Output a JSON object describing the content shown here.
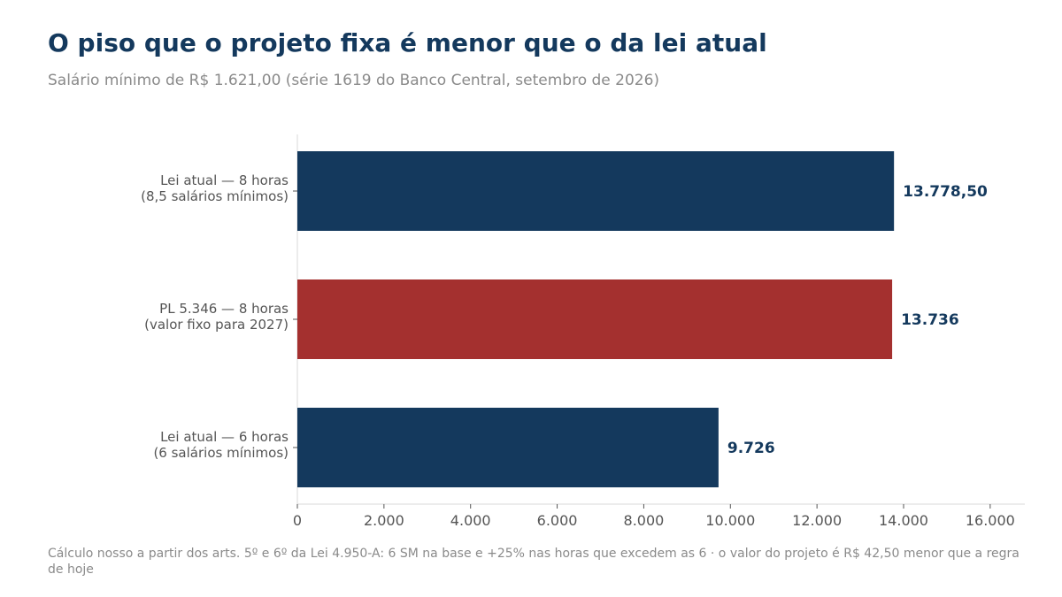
{
  "header": {
    "title": "O piso que o projeto fixa é menor que o da lei atual",
    "subtitle": "Salário mínimo de R$ 1.621,00 (série 1619 do Banco Central, setembro de 2026)"
  },
  "footnote": "Cálculo nosso a partir dos arts. 5º e 6º da Lei 4.950-A: 6 SM na base e +25% nas horas que excedem as 6 · o valor do projeto é R$ 42,50 menor que a regra de hoje",
  "chart_data": {
    "type": "bar",
    "orientation": "horizontal",
    "categories": [
      [
        "Lei atual — 8 horas",
        "(8,5 salários mínimos)"
      ],
      [
        "PL 5.346 — 8 horas",
        "(valor fixo para 2027)"
      ],
      [
        "Lei atual — 6 horas",
        "(6 salários mínimos)"
      ]
    ],
    "values": [
      13778.5,
      13736,
      9726
    ],
    "value_labels": [
      "13.778,50",
      "13.736",
      "9.726"
    ],
    "colors": [
      "#14395d",
      "#a4302f",
      "#14395d"
    ],
    "xlim": [
      0,
      16800
    ],
    "xticks": [
      0,
      2000,
      4000,
      6000,
      8000,
      10000,
      12000,
      14000,
      16000
    ],
    "xtick_labels": [
      "0",
      "2.000",
      "4.000",
      "6.000",
      "8.000",
      "10.000",
      "12.000",
      "14.000",
      "16.000"
    ],
    "grid": false,
    "label_color": "#14395d"
  }
}
